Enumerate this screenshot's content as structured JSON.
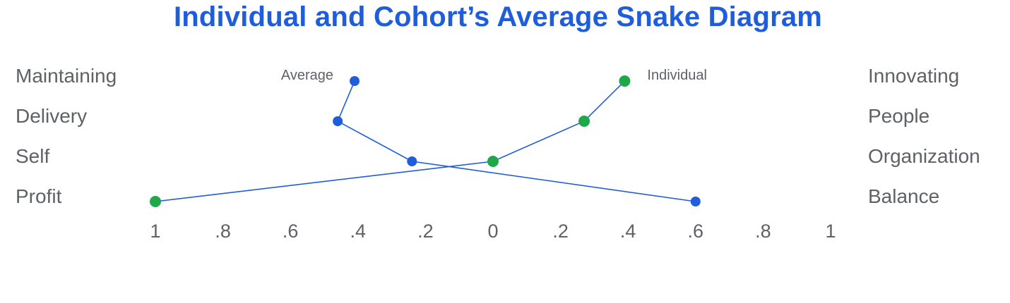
{
  "chart_data": {
    "type": "line",
    "title": "Individual and Cohort’s Average Snake Diagram",
    "left_categories": [
      "Maintaining",
      "Delivery",
      "Self",
      "Profit"
    ],
    "right_categories": [
      "Innovating",
      "People",
      "Organization",
      "Balance"
    ],
    "x_tick_labels": [
      "1",
      ".8",
      ".6",
      ".4",
      ".2",
      "0",
      ".2",
      ".4",
      ".6",
      ".8",
      "1"
    ],
    "xlim": [
      -1,
      1
    ],
    "series": [
      {
        "name": "Average",
        "color": "#1f5ddb",
        "values": [
          -0.41,
          -0.46,
          -0.24,
          0.6
        ]
      },
      {
        "name": "Individual",
        "color": "#1fa84a",
        "values": [
          0.39,
          0.27,
          0.0,
          -1.0
        ]
      }
    ]
  }
}
